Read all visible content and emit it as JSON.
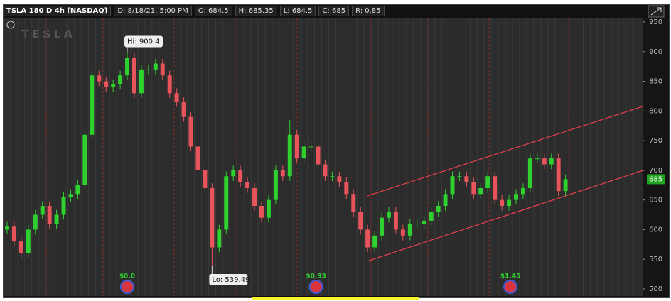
{
  "header": {
    "symbol": "TSLA 180 D 4h [NASDAQ]",
    "fields": [
      "D: 8/18/21, 5:00 PM",
      "O: 684.5",
      "H: 685.35",
      "L: 684.5",
      "C: 685",
      "R: 0.85"
    ]
  },
  "chart_data": {
    "type": "candlestick",
    "watermark": "TESLA",
    "up_color": "#2fd12f",
    "down_color": "#e8545c",
    "xlim": [
      -0.5,
      90
    ],
    "ylim": [
      488,
      956
    ],
    "yticks": [
      500,
      550,
      600,
      650,
      700,
      750,
      800,
      850,
      900,
      950
    ],
    "open": [
      600,
      605,
      580,
      560,
      600,
      625,
      640,
      610,
      625,
      655,
      660,
      675,
      760,
      860,
      850,
      840,
      845,
      860,
      890,
      830,
      870,
      870,
      880,
      860,
      830,
      815,
      790,
      740,
      700,
      670,
      570,
      600,
      690,
      700,
      680,
      670,
      640,
      620,
      650,
      700,
      690,
      760,
      720,
      740,
      740,
      710,
      690,
      690,
      680,
      660,
      630,
      600,
      570,
      590,
      620,
      630,
      600,
      590,
      610,
      610,
      615,
      630,
      640,
      660,
      690,
      690,
      680,
      660,
      670,
      690,
      650,
      640,
      650,
      660,
      670,
      720,
      720,
      710,
      720,
      665
    ],
    "high": [
      613,
      613,
      588,
      608,
      633,
      648,
      648,
      633,
      663,
      668,
      683,
      768,
      868,
      868,
      858,
      853,
      868,
      900.4,
      898,
      878,
      878,
      888,
      888,
      868,
      838,
      823,
      798,
      748,
      708,
      678,
      608,
      698,
      708,
      708,
      688,
      678,
      648,
      658,
      708,
      708,
      785,
      768,
      748,
      748,
      748,
      718,
      698,
      698,
      688,
      668,
      638,
      608,
      598,
      628,
      638,
      638,
      608,
      618,
      618,
      623,
      638,
      648,
      668,
      698,
      698,
      698,
      688,
      678,
      698,
      698,
      658,
      658,
      668,
      678,
      728,
      728,
      728,
      728,
      728,
      693
    ],
    "low": [
      592,
      572,
      552,
      552,
      592,
      617,
      602,
      602,
      617,
      647,
      652,
      667,
      752,
      842,
      832,
      832,
      837,
      852,
      822,
      822,
      862,
      862,
      852,
      822,
      807,
      782,
      732,
      692,
      662,
      539.49,
      562,
      592,
      682,
      672,
      662,
      632,
      612,
      612,
      642,
      682,
      682,
      712,
      712,
      732,
      702,
      682,
      682,
      672,
      652,
      622,
      592,
      562,
      562,
      582,
      612,
      592,
      582,
      582,
      602,
      602,
      607,
      622,
      632,
      652,
      682,
      672,
      652,
      652,
      662,
      642,
      632,
      632,
      642,
      652,
      662,
      712,
      702,
      702,
      657,
      657
    ],
    "close": [
      605,
      580,
      560,
      600,
      625,
      640,
      610,
      625,
      655,
      660,
      675,
      760,
      860,
      850,
      840,
      845,
      860,
      890,
      830,
      870,
      870,
      880,
      860,
      830,
      815,
      790,
      740,
      700,
      670,
      570,
      600,
      690,
      700,
      680,
      670,
      640,
      620,
      650,
      700,
      690,
      760,
      720,
      740,
      740,
      710,
      690,
      690,
      680,
      660,
      630,
      600,
      570,
      590,
      620,
      630,
      600,
      590,
      610,
      610,
      615,
      630,
      640,
      660,
      690,
      690,
      680,
      660,
      670,
      690,
      650,
      640,
      650,
      660,
      670,
      720,
      720,
      710,
      720,
      665,
      685
    ],
    "hi_label": "Hi: 900.4",
    "lo_label": "Lo: 539.49",
    "channel_color": "#e8404a",
    "channel": [
      {
        "x": [
          51,
          90
        ],
        "y": [
          657,
          808
        ]
      },
      {
        "x": [
          51,
          90
        ],
        "y": [
          547,
          700
        ]
      }
    ],
    "events": [
      {
        "x": 17,
        "label": "$0.0"
      },
      {
        "x": 43.7,
        "label": "$0.93"
      },
      {
        "x": 71.2,
        "label": "$1.45"
      }
    ]
  }
}
